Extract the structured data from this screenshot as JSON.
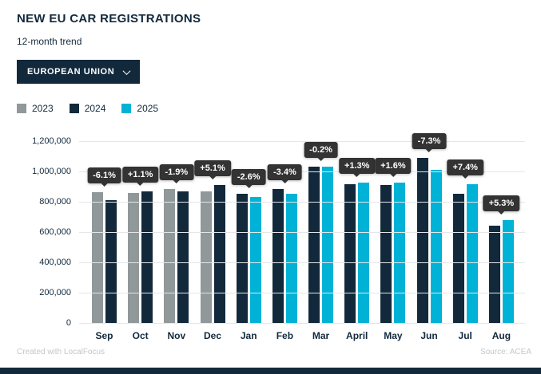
{
  "header": {
    "title": "NEW EU CAR REGISTRATIONS",
    "subtitle": "12-month trend"
  },
  "dropdown": {
    "value": "EUROPEAN UNION"
  },
  "chart_data": {
    "type": "bar",
    "categories": [
      "Sep",
      "Oct",
      "Nov",
      "Dec",
      "Jan",
      "Feb",
      "Mar",
      "April",
      "May",
      "Jun",
      "Jul",
      "Aug"
    ],
    "series": [
      {
        "name": "2023",
        "color": "#90989a",
        "values": [
          861000,
          857000,
          885000,
          867000,
          null,
          null,
          null,
          null,
          null,
          null,
          null,
          null
        ]
      },
      {
        "name": "2024",
        "color": "#12293c",
        "values": [
          809000,
          866000,
          869000,
          910000,
          852000,
          884000,
          1032000,
          914000,
          912000,
          1090000,
          852000,
          644000
        ]
      },
      {
        "name": "2025",
        "color": "#00b2d6",
        "values": [
          null,
          null,
          null,
          null,
          831000,
          854000,
          1029000,
          925000,
          927000,
          1010000,
          915000,
          678000
        ]
      }
    ],
    "change_labels": [
      "-6.1%",
      "+1.1%",
      "-1.9%",
      "+5.1%",
      "-2.6%",
      "-3.4%",
      "-0.2%",
      "+1.3%",
      "+1.6%",
      "-7.3%",
      "+7.4%",
      "+5.3%"
    ],
    "ylim": [
      0,
      1200000
    ],
    "yticks": [
      {
        "value": 0,
        "label": "0"
      },
      {
        "value": 200000,
        "label": "200,000"
      },
      {
        "value": 400000,
        "label": "400,000"
      },
      {
        "value": 600000,
        "label": "600,000"
      },
      {
        "value": 800000,
        "label": "800,000"
      },
      {
        "value": 1000000,
        "label": "1,000,000"
      },
      {
        "value": 1200000,
        "label": "1,200,000"
      }
    ],
    "grid": true,
    "legend_position": "top",
    "title": "NEW EU CAR REGISTRATIONS",
    "xlabel": "",
    "ylabel": ""
  },
  "footer": {
    "credit": "Created with LocalFocus",
    "source_label": "Source:",
    "source_value": "ACEA"
  }
}
